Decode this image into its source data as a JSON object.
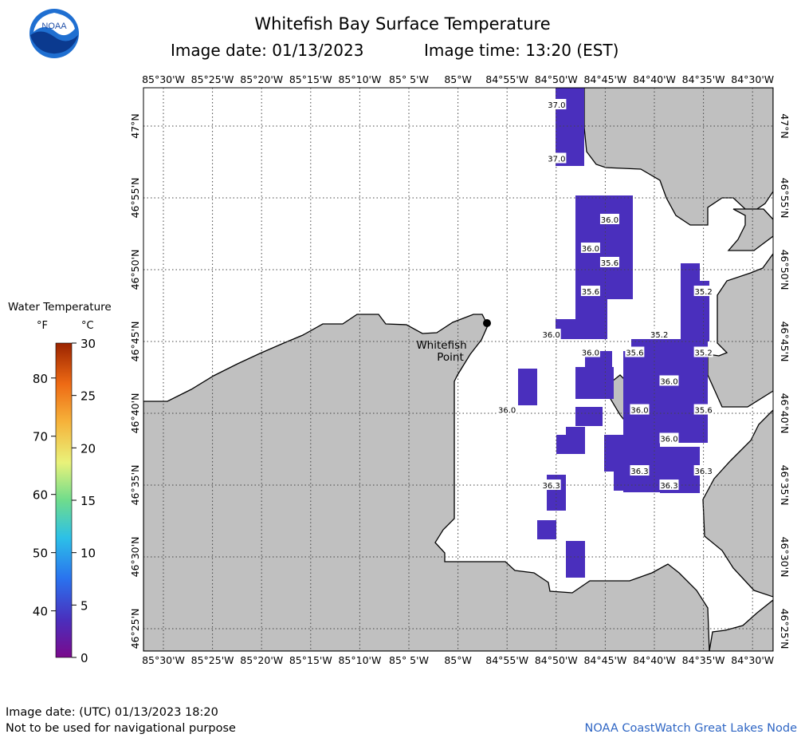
{
  "header": {
    "title": "Whitefish Bay Surface Temperature",
    "image_date": "Image date: 01/13/2023",
    "image_time": "Image time: 13:20 (EST)",
    "logo_text": "NOAA"
  },
  "map": {
    "lon_labels": [
      "85°30'W",
      "85°25'W",
      "85°20'W",
      "85°15'W",
      "85°10'W",
      "85° 5'W",
      "85°W",
      "84°55'W",
      "84°50'W",
      "84°45'W",
      "84°40'W",
      "84°35'W",
      "84°30'W"
    ],
    "lat_labels": [
      "47°N",
      "46°55'N",
      "46°50'N",
      "46°45'N",
      "46°40'N",
      "46°35'N",
      "46°30'N",
      "46°25'N"
    ],
    "place_label": [
      "Whitefish",
      "Point"
    ],
    "land_color": "#c0c0c0",
    "water_color": "#ffffff",
    "temperature_color": "#4a2fbd",
    "temperature_labels": [
      {
        "lat": 47.025,
        "lon": -84.8325,
        "value": "37.0"
      },
      {
        "lat": 46.9625,
        "lon": -84.8325,
        "value": "37.0"
      },
      {
        "lat": 46.8917,
        "lon": -84.7425,
        "value": "36.0"
      },
      {
        "lat": 46.8583,
        "lon": -84.775,
        "value": "36.0"
      },
      {
        "lat": 46.8417,
        "lon": -84.7425,
        "value": "35.6"
      },
      {
        "lat": 46.8083,
        "lon": -84.775,
        "value": "35.6"
      },
      {
        "lat": 46.7583,
        "lon": -84.8417,
        "value": "36.0"
      },
      {
        "lat": 46.7583,
        "lon": -84.6583,
        "value": "35.2"
      },
      {
        "lat": 46.8083,
        "lon": -84.5833,
        "value": "35.2"
      },
      {
        "lat": 46.7375,
        "lon": -84.775,
        "value": "36.0"
      },
      {
        "lat": 46.7375,
        "lon": -84.7,
        "value": "35.6"
      },
      {
        "lat": 46.7375,
        "lon": -84.5833,
        "value": "35.2"
      },
      {
        "lat": 46.7042,
        "lon": -84.6417,
        "value": "36.0"
      },
      {
        "lat": 46.6708,
        "lon": -84.9167,
        "value": "36.0"
      },
      {
        "lat": 46.6708,
        "lon": -84.6917,
        "value": "36.0"
      },
      {
        "lat": 46.6708,
        "lon": -84.5833,
        "value": "35.6"
      },
      {
        "lat": 46.6375,
        "lon": -84.6417,
        "value": "36.0"
      },
      {
        "lat": 46.6,
        "lon": -84.6917,
        "value": "36.3"
      },
      {
        "lat": 46.6,
        "lon": -84.5833,
        "value": "36.3"
      },
      {
        "lat": 46.5833,
        "lon": -84.8417,
        "value": "36.3"
      },
      {
        "lat": 46.5833,
        "lon": -84.6417,
        "value": "36.3"
      }
    ]
  },
  "legend": {
    "title": "Water Temperature",
    "unit_f": "°F",
    "unit_c": "°C",
    "f_ticks": [
      "80",
      "70",
      "60",
      "50",
      "40"
    ],
    "c_ticks": [
      "30",
      "25",
      "20",
      "15",
      "10",
      "5",
      "0"
    ]
  },
  "footer": {
    "utc_date": "Image date: (UTC) 01/13/2023   18:20",
    "disclaimer": "Not to be used for navigational purpose",
    "credit": "NOAA CoastWatch Great Lakes Node"
  }
}
